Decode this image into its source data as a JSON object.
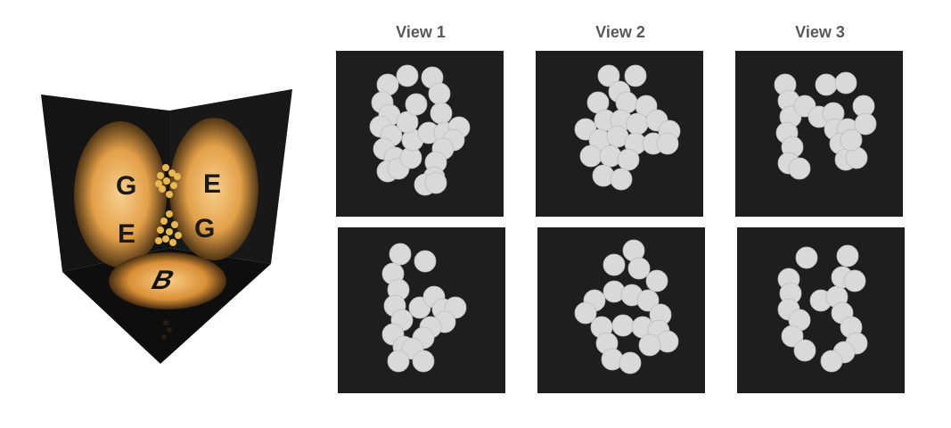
{
  "views": [
    {
      "label": "View 1",
      "top_pattern": "9",
      "bottom_pattern": "alt-9"
    },
    {
      "label": "View 2",
      "top_pattern": "blob",
      "bottom_pattern": "4"
    },
    {
      "label": "View 3",
      "top_pattern": "H",
      "bottom_pattern": "H2"
    }
  ],
  "scene": {
    "wall_letters": [
      "G",
      "E",
      "E",
      "G"
    ],
    "floor_letter": "B",
    "glow_color": "#f0a848",
    "ball_color": "#e8b850",
    "projection_ball_color": "#d9d9d9",
    "panel_background": "#1e1e1e"
  }
}
